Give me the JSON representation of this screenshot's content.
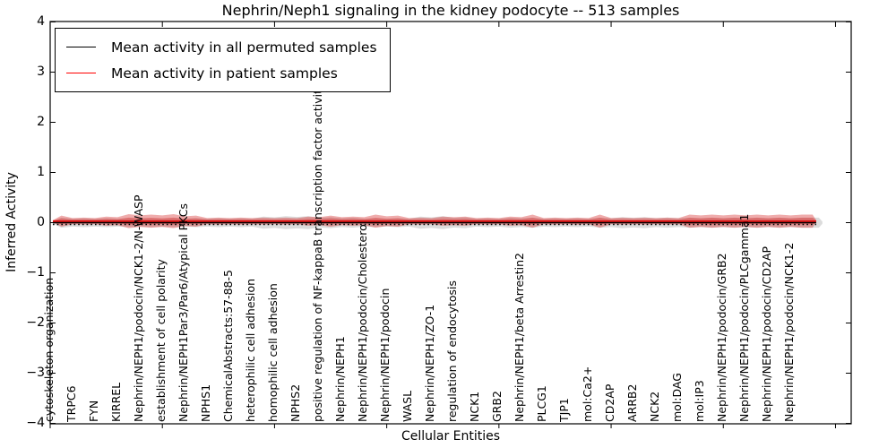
{
  "figure": {
    "title": "Nephrin/Neph1 signaling in the kidney podocyte -- 513 samples"
  },
  "axes": {
    "xlabel": "Cellular Entities",
    "ylabel": "Inferred Activity",
    "ylim": [
      -4,
      4
    ],
    "yticklabels": [
      "4",
      "3",
      "2",
      "1",
      "0",
      "−1",
      "−2",
      "−3",
      "−4"
    ]
  },
  "legend": {
    "entries": [
      {
        "label": "Mean activity in all permuted samples",
        "color": "#000000"
      },
      {
        "label": "Mean activity in patient samples",
        "color": "#ff0000"
      }
    ]
  },
  "chart_data": {
    "type": "line",
    "title": "Nephrin/Neph1 signaling in the kidney podocyte -- 513 samples",
    "xlabel": "Cellular Entities",
    "ylabel": "Inferred Activity",
    "ylim": [
      -4,
      4
    ],
    "grid": false,
    "legend_position": "upper left",
    "x_tick_rotation": 90,
    "sample_count": 513,
    "categories": [
      "cytoskeleton organization",
      "TRPC6",
      "FYN",
      "KIRREL",
      "Nephrin/NEPH1/podocin/NCK1-2/N-WASP",
      "establishment of cell polarity",
      "Nephrin/NEPH1Par3/Par6/Atypical PKCs",
      "NPHS1",
      "ChemicalAbstracts:57-88-5",
      "heterophilic cell adhesion",
      "homophilic cell adhesion",
      "NPHS2",
      "positive regulation of NF-kappaB transcription factor activity",
      "Nephrin/NEPH1",
      "Nephrin/NEPH1/podocin/Cholesterol",
      "Nephrin/NEPH1/podocin",
      "WASL",
      "Nephrin/NEPH1/ZO-1",
      "regulation of endocytosis",
      "NCK1",
      "GRB2",
      "Nephrin/NEPH1/beta Arrestin2",
      "PLCG1",
      "TJP1",
      "mol:Ca2+",
      "CD2AP",
      "ARRB2",
      "NCK2",
      "mol:DAG",
      "mol:IP3",
      "Nephrin/NEPH1/podocin/GRB2",
      "Nephrin/NEPH1/podocin/PLCgamma1",
      "Nephrin/NEPH1/podocin/CD2AP",
      "Nephrin/NEPH1/podocin/NCK1-2"
    ],
    "series": [
      {
        "name": "Mean activity in all permuted samples",
        "color": "#000000",
        "band_color": "rgba(130,130,130,0.28)",
        "values": [
          0,
          0,
          0,
          0,
          0,
          0,
          0,
          0,
          0,
          0,
          0,
          0,
          0,
          0,
          0,
          0,
          0,
          0,
          0,
          0,
          0,
          0,
          0,
          0,
          0,
          0,
          0,
          0,
          0,
          0,
          0,
          0,
          0,
          0
        ],
        "band_halfwidth": [
          0.1,
          0.09,
          0.09,
          0.09,
          0.09,
          0.09,
          0.09,
          0.09,
          0.09,
          0.12,
          0.13,
          0.13,
          0.11,
          0.1,
          0.09,
          0.09,
          0.12,
          0.13,
          0.11,
          0.09,
          0.1,
          0.1,
          0.09,
          0.09,
          0.1,
          0.11,
          0.11,
          0.1,
          0.1,
          0.1,
          0.1,
          0.1,
          0.1,
          0.1
        ]
      },
      {
        "name": "Mean activity in patient samples",
        "color": "#e00000",
        "band_color": "rgba(215,48,48,0.40)",
        "values": [
          0.03,
          0.03,
          0.03,
          0.03,
          0.03,
          0.03,
          0.03,
          0.03,
          0.03,
          0.03,
          0.03,
          0.03,
          0.03,
          0.03,
          0.03,
          0.03,
          0.03,
          0.03,
          0.03,
          0.03,
          0.03,
          0.03,
          0.03,
          0.03,
          0.03,
          0.03,
          0.03,
          0.03,
          0.03,
          0.03,
          0.03,
          0.03,
          0.03,
          0.03
        ],
        "band_halfwidth": [
          0.11,
          0.07,
          0.09,
          0.14,
          0.13,
          0.14,
          0.11,
          0.07,
          0.07,
          0.07,
          0.07,
          0.09,
          0.11,
          0.09,
          0.13,
          0.11,
          0.07,
          0.09,
          0.09,
          0.07,
          0.09,
          0.13,
          0.07,
          0.07,
          0.13,
          0.07,
          0.07,
          0.07,
          0.13,
          0.13,
          0.13,
          0.13,
          0.13,
          0.13
        ]
      }
    ],
    "dotted_reference_line": 0.0
  }
}
